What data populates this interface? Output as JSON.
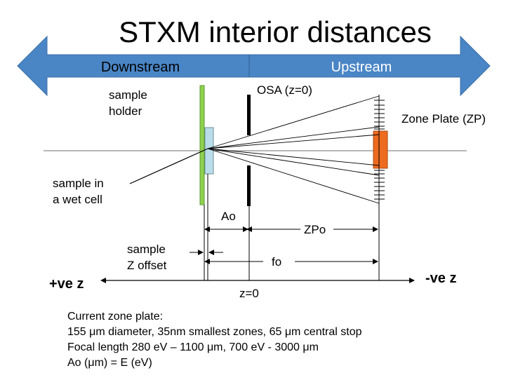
{
  "title": "STXM interior distances",
  "direction_arrow": {
    "left_label": "Downstream",
    "right_label": "Upstream"
  },
  "labels": {
    "sample_holder_line1": "sample",
    "sample_holder_line2": "holder",
    "osa": "OSA (z=0)",
    "zone_plate": "Zone Plate (ZP)",
    "wet_cell_line1": "sample in",
    "wet_cell_line2": "a wet cell",
    "ao": "Ao",
    "zpo": "ZPo",
    "offset_line1": "sample",
    "offset_line2": "Z offset",
    "fo": "fo",
    "pos_z": "+ve z",
    "neg_z": "-ve z",
    "z0": "z=0"
  },
  "caption": {
    "line1": "Current zone plate:",
    "line2": "155 μm diameter, 35nm smallest zones, 65 μm central stop",
    "line3": "Focal length 280 eV – 1100 μm, 700 eV - 3000 μm",
    "line4": "Ao (μm) = E (eV)"
  },
  "colors": {
    "arrow_fill": "#4a86c6",
    "sample_holder": "#8fd14f",
    "wet_cell": "#b9dde8",
    "zone_plate": "#ed6b1e",
    "osa": "#000000",
    "lines": "#000000"
  }
}
